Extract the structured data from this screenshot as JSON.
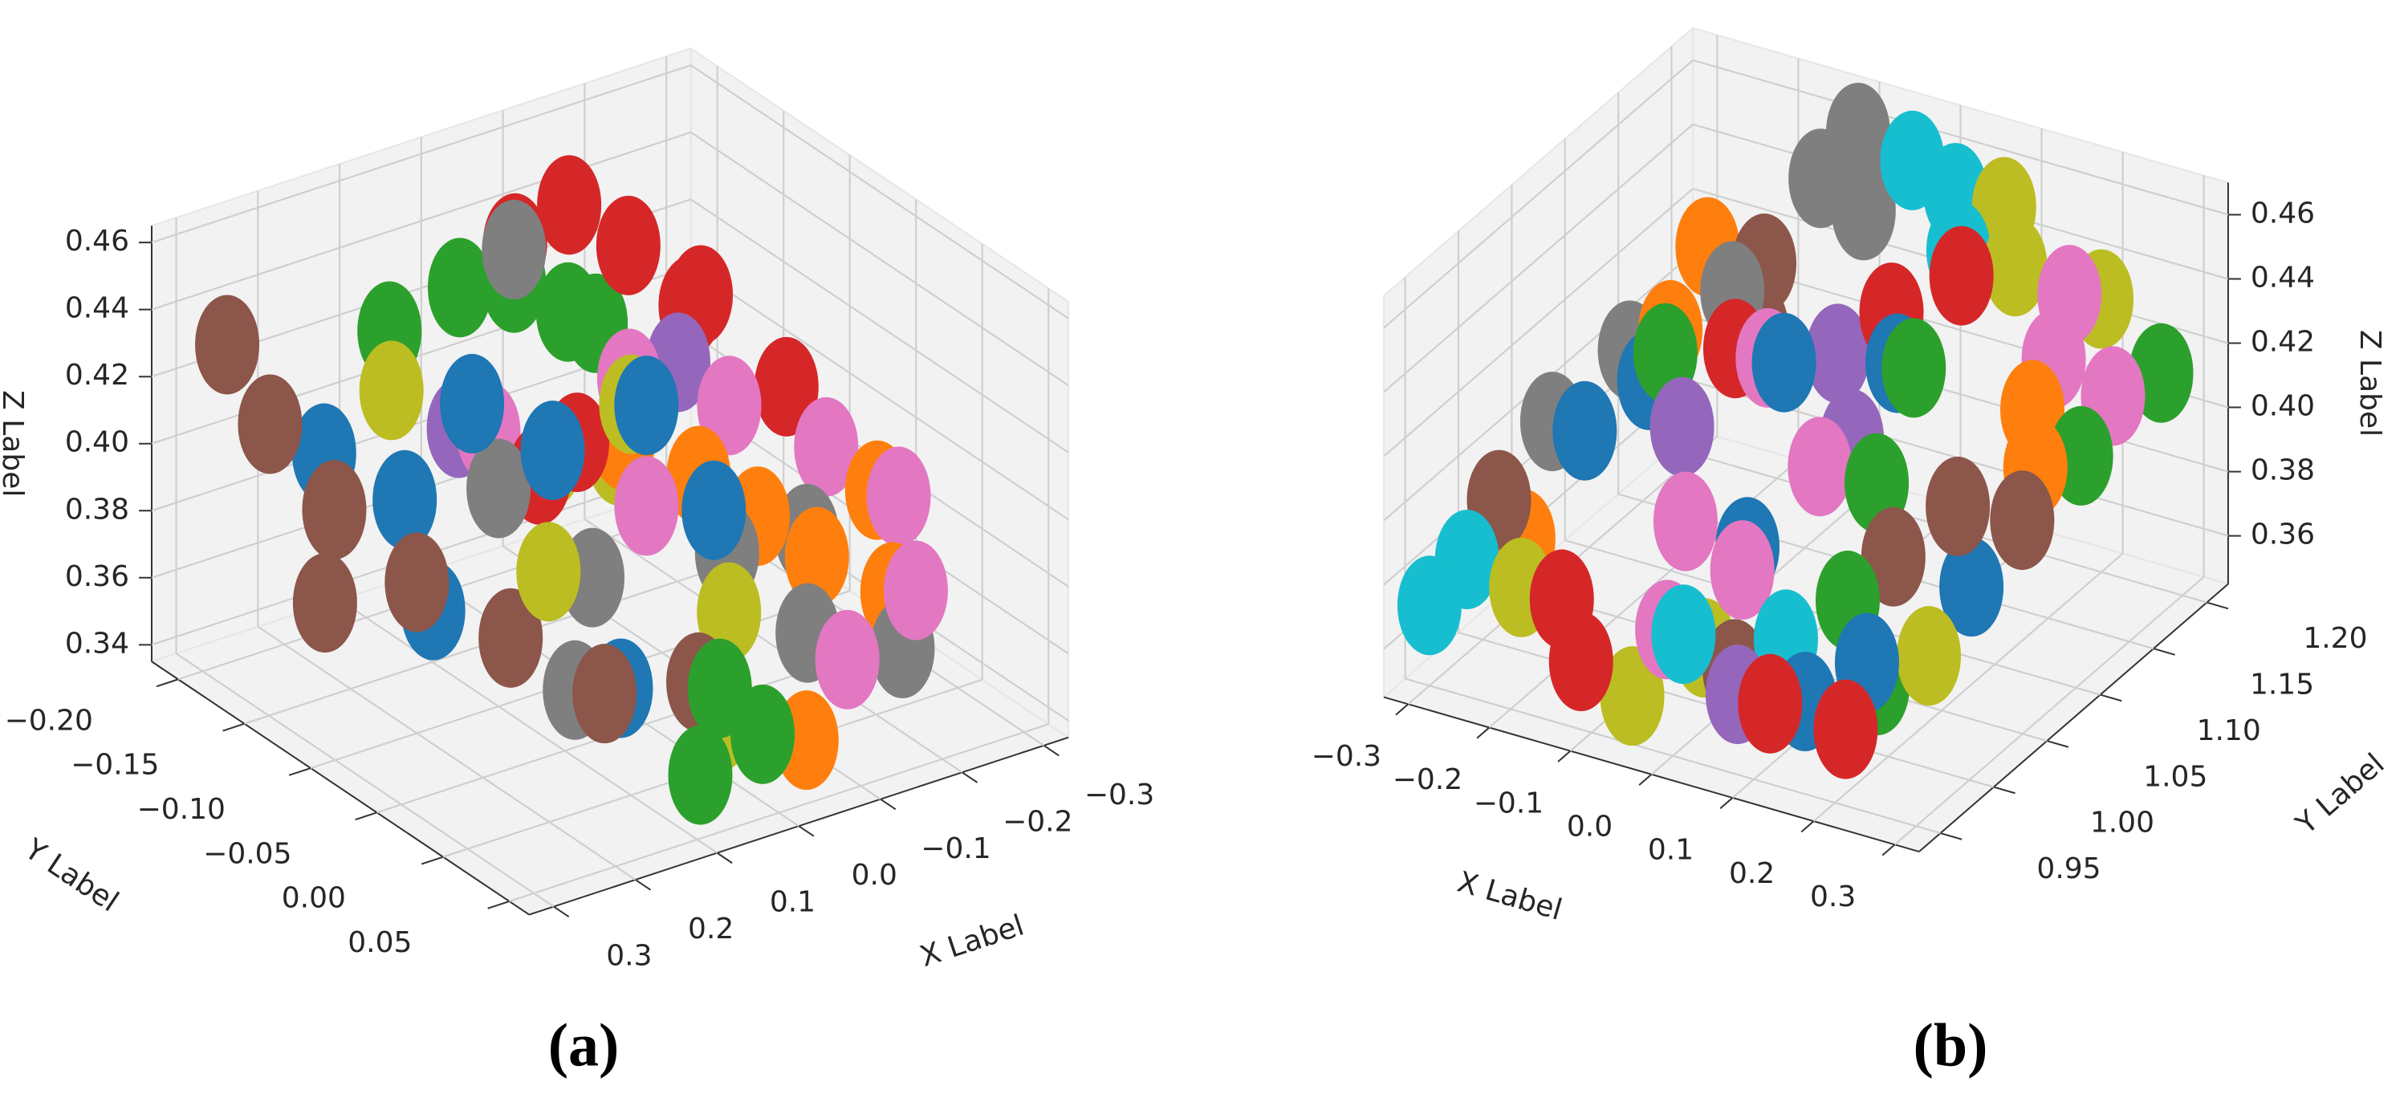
{
  "chart_data": [
    {
      "type": "scatter3d",
      "caption": "(a)",
      "xlabel": "X Label",
      "ylabel": "Y Label",
      "zlabel": "Z Label",
      "grid": true,
      "xlim": [
        -0.33,
        0.33
      ],
      "ylim": [
        -0.22,
        0.065
      ],
      "zlim": [
        0.335,
        0.465
      ],
      "xticks": [
        {
          "value": -0.3,
          "label": "−0.3"
        },
        {
          "value": -0.2,
          "label": "−0.2"
        },
        {
          "value": -0.1,
          "label": "−0.1"
        },
        {
          "value": 0,
          "label": "0.0"
        },
        0.1,
        0.2,
        0.3
      ],
      "yticks": [
        {
          "value": -0.2,
          "label": "−0.20"
        },
        {
          "value": -0.15,
          "label": "−0.15"
        },
        {
          "value": -0.1,
          "label": "−0.10"
        },
        {
          "value": -0.05,
          "label": "−0.05"
        },
        {
          "value": 0,
          "label": "0.00"
        },
        0.05
      ],
      "zticks": [
        0.34,
        0.36,
        0.38,
        {
          "value": 0.4,
          "label": "0.40"
        },
        0.42,
        0.44,
        0.46
      ],
      "series": [
        {
          "color": "#8c564b",
          "x": [
            0.27,
            0.25,
            0.22,
            0.2,
            0.15,
            0.1,
            0.05,
            0.28
          ],
          "y": [
            -0.2,
            -0.18,
            -0.15,
            -0.1,
            -0.06,
            -0.02,
            0.02,
            -0.12
          ],
          "z": [
            0.43,
            0.41,
            0.39,
            0.38,
            0.37,
            0.36,
            0.37,
            0.375
          ]
        },
        {
          "color": "#1f77b4",
          "x": [
            0.2,
            0.15,
            0.1,
            0.05,
            0.0,
            -0.05,
            0.18,
            0.08
          ],
          "y": [
            -0.17,
            -0.14,
            -0.12,
            -0.09,
            -0.05,
            -0.03,
            -0.1,
            -0.02
          ],
          "z": [
            0.4,
            0.39,
            0.42,
            0.41,
            0.43,
            0.4,
            0.37,
            0.36
          ]
        },
        {
          "color": "#7f7f7f",
          "x": [
            0.1,
            0.05,
            -0.05,
            -0.1,
            -0.18,
            -0.2,
            0.0,
            0.12
          ],
          "y": [
            -0.1,
            -0.06,
            -0.02,
            0.01,
            -0.04,
            0.02,
            -0.15,
            -0.03
          ],
          "z": [
            0.4,
            0.38,
            0.39,
            0.37,
            0.38,
            0.36,
            0.45,
            0.36
          ]
        },
        {
          "color": "#bcbd22",
          "x": [
            0.15,
            0.08,
            0.02,
            -0.03,
            -0.08,
            0.12,
            -0.02,
            0.04
          ],
          "y": [
            -0.15,
            -0.13,
            -0.11,
            -0.08,
            -0.12,
            -0.05,
            0.0,
            0.03
          ],
          "z": [
            0.42,
            0.41,
            0.4,
            0.42,
            0.39,
            0.39,
            0.38,
            0.36
          ]
        },
        {
          "color": "#2ca02c",
          "x": [
            0.12,
            0.05,
            0.0,
            -0.05,
            -0.1,
            0.04,
            0.02,
            0.08
          ],
          "y": [
            -0.17,
            -0.16,
            -0.15,
            -0.14,
            -0.15,
            0.03,
            0.05,
            0.04
          ],
          "z": [
            0.43,
            0.44,
            0.44,
            0.43,
            0.42,
            0.37,
            0.36,
            0.35
          ]
        },
        {
          "color": "#d62728",
          "x": [
            -0.05,
            -0.1,
            -0.14,
            -0.2,
            0.05,
            -0.22,
            -0.18,
            0.02
          ],
          "y": [
            -0.18,
            -0.17,
            -0.15,
            -0.14,
            -0.1,
            -0.08,
            -0.12,
            -0.09
          ],
          "z": [
            0.44,
            0.45,
            0.44,
            0.42,
            0.4,
            0.41,
            0.43,
            0.41
          ]
        },
        {
          "color": "#ff7f0e",
          "x": [
            -0.02,
            -0.08,
            -0.12,
            -0.16,
            -0.22,
            0.02,
            -0.05,
            -0.25
          ],
          "y": [
            -0.08,
            -0.06,
            -0.04,
            -0.02,
            0.0,
            0.02,
            0.04,
            -0.03
          ],
          "z": [
            0.41,
            0.4,
            0.39,
            0.38,
            0.37,
            0.36,
            0.35,
            0.39
          ]
        },
        {
          "color": "#e377c2",
          "x": [
            0.08,
            -0.06,
            -0.15,
            -0.22,
            -0.26,
            -0.2,
            -0.1,
            0.0
          ],
          "y": [
            -0.12,
            -0.1,
            -0.08,
            -0.05,
            -0.02,
            0.03,
            0.04,
            -0.05
          ],
          "z": [
            0.41,
            0.42,
            0.41,
            0.4,
            0.39,
            0.38,
            0.37,
            0.4
          ]
        },
        {
          "color": "#9467bd",
          "x": [
            0.1,
            -0.12
          ],
          "y": [
            -0.13,
            -0.1
          ],
          "z": [
            0.41,
            0.42
          ]
        }
      ]
    },
    {
      "type": "scatter3d",
      "caption": "(b)",
      "xlabel": "X Label",
      "ylabel": "Y Label",
      "zlabel": "Z Label",
      "grid": true,
      "xlim": [
        -0.33,
        0.33
      ],
      "ylim": [
        0.93,
        1.22
      ],
      "zlim": [
        0.345,
        0.47
      ],
      "xticks": [
        {
          "value": -0.3,
          "label": "−0.3"
        },
        {
          "value": -0.2,
          "label": "−0.2"
        },
        {
          "value": -0.1,
          "label": "−0.1"
        },
        {
          "value": 0,
          "label": "0.0"
        },
        0.1,
        0.2,
        0.3
      ],
      "yticks": [
        0.95,
        {
          "value": 1.0,
          "label": "1.00"
        },
        1.05,
        {
          "value": 1.1,
          "label": "1.10"
        },
        1.15,
        {
          "value": 1.2,
          "label": "1.20"
        }
      ],
      "zticks": [
        0.36,
        0.38,
        {
          "value": 0.4,
          "label": "0.40"
        },
        0.42,
        0.44,
        0.46
      ],
      "series": [
        {
          "color": "#7f7f7f",
          "x": [
            -0.12,
            -0.1,
            -0.08,
            -0.25,
            -0.28,
            -0.15
          ],
          "y": [
            1.18,
            1.2,
            1.19,
            1.1,
            1.05,
            1.12
          ],
          "z": [
            0.45,
            0.46,
            0.44,
            0.41,
            0.4,
            0.43
          ]
        },
        {
          "color": "#17becf",
          "x": [
            -0.02,
            0.02,
            0.05,
            -0.28,
            -0.3,
            0.0,
            0.05,
            0.1
          ],
          "y": [
            1.19,
            1.2,
            1.18,
            0.97,
            0.95,
            0.96,
            0.97,
            0.98
          ],
          "z": [
            0.46,
            0.45,
            0.44,
            0.38,
            0.37,
            0.38,
            0.37,
            0.38
          ]
        },
        {
          "color": "#bcbd22",
          "x": [
            0.08,
            0.12,
            0.2,
            -0.2,
            -0.05,
            0.25,
            0.0
          ],
          "y": [
            1.2,
            1.18,
            1.2,
            0.96,
            0.95,
            1.0,
            0.98
          ],
          "z": [
            0.45,
            0.44,
            0.43,
            0.38,
            0.36,
            0.38,
            0.37
          ]
        },
        {
          "color": "#ff7f0e",
          "x": [
            -0.22,
            -0.2,
            0.22,
            0.25,
            -0.25
          ],
          "y": [
            1.15,
            1.1,
            1.12,
            1.1,
            1.0
          ],
          "z": [
            0.43,
            0.42,
            0.42,
            0.41,
            0.38
          ]
        },
        {
          "color": "#8c564b",
          "x": [
            -0.15,
            -0.12,
            -0.28,
            0.18,
            0.22,
            0.26,
            0.05
          ],
          "y": [
            1.15,
            1.12,
            1.0,
            1.02,
            1.05,
            1.08,
            0.97
          ],
          "z": [
            0.43,
            0.42,
            0.39,
            0.4,
            0.41,
            0.4,
            0.37
          ]
        },
        {
          "color": "#2ca02c",
          "x": [
            -0.18,
            0.1,
            0.12,
            0.15,
            0.28,
            0.3,
            0.2
          ],
          "y": [
            1.08,
            1.1,
            1.05,
            1.0,
            1.12,
            1.18,
            0.99
          ],
          "z": [
            0.42,
            0.43,
            0.41,
            0.39,
            0.41,
            0.42,
            0.37
          ]
        },
        {
          "color": "#d62728",
          "x": [
            -0.12,
            -0.15,
            -0.1,
            0.02,
            0.08,
            0.12,
            0.2
          ],
          "y": [
            1.1,
            0.96,
            0.94,
            1.14,
            1.16,
            0.95,
            0.96
          ],
          "z": [
            0.42,
            0.38,
            0.37,
            0.43,
            0.44,
            0.37,
            0.365
          ]
        },
        {
          "color": "#e377c2",
          "x": [
            -0.08,
            -0.05,
            -0.02,
            0.05,
            0.02,
            0.2,
            0.22,
            0.28
          ],
          "y": [
            1.1,
            1.0,
            0.96,
            1.05,
            1.0,
            1.17,
            1.14,
            1.15
          ],
          "z": [
            0.42,
            0.4,
            0.38,
            0.41,
            0.39,
            0.44,
            0.43,
            0.42
          ]
        },
        {
          "color": "#1f77b4",
          "x": [
            -0.2,
            -0.24,
            -0.06,
            0.0,
            0.08,
            0.15,
            0.2,
            0.25
          ],
          "y": [
            1.08,
            1.05,
            1.1,
            1.02,
            1.1,
            0.96,
            0.98,
            1.04
          ],
          "z": [
            0.41,
            0.4,
            0.42,
            0.39,
            0.43,
            0.37,
            0.38,
            0.39
          ]
        },
        {
          "color": "#9467bd",
          "x": [
            -0.12,
            -0.02,
            0.05,
            0.08
          ],
          "y": [
            1.05,
            1.12,
            1.08,
            0.95
          ],
          "z": [
            0.41,
            0.42,
            0.41,
            0.37
          ]
        }
      ]
    }
  ]
}
